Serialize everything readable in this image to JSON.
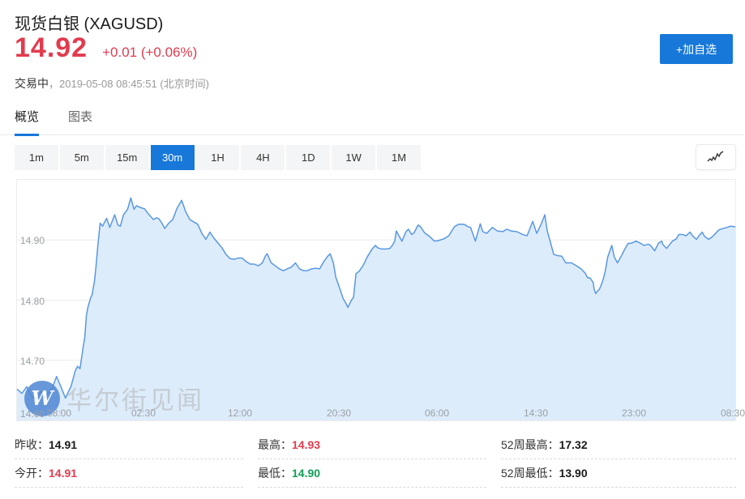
{
  "header": {
    "title": "现货白银 (XAGUSD)",
    "price": "14.92",
    "change": "+0.01 (+0.06%)",
    "status": "交易中",
    "status_sep": "，",
    "timestamp": "2019-05-08 08:45:51 (北京时间)",
    "add_button_label": "+加自选"
  },
  "tabs": [
    {
      "name": "overview",
      "label": "概览",
      "active": true
    },
    {
      "name": "chart",
      "label": "图表",
      "active": false
    }
  ],
  "ranges": [
    {
      "label": "1m",
      "active": false
    },
    {
      "label": "5m",
      "active": false
    },
    {
      "label": "15m",
      "active": false
    },
    {
      "label": "30m",
      "active": true
    },
    {
      "label": "1H",
      "active": false
    },
    {
      "label": "4H",
      "active": false
    },
    {
      "label": "1D",
      "active": false
    },
    {
      "label": "1W",
      "active": false
    },
    {
      "label": "1M",
      "active": false
    }
  ],
  "watermark": {
    "logo": "W",
    "text": "华尔街见闻"
  },
  "colors": {
    "accent_blue": "#1778d9",
    "up_red": "#e23b4e",
    "down_green": "#0f9d58",
    "line_blue": "#5897e3",
    "fill_blue": "#ddecfa"
  },
  "chart_data": {
    "type": "area",
    "title": "",
    "xlabel": "",
    "ylabel": "",
    "grid": true,
    "legend": "none",
    "ylim": [
      14.6,
      15.0
    ],
    "line_color": "#5897e3",
    "fill_color": "#ddecfa",
    "y_ticks": [
      {
        "label": "14.90",
        "price": 14.9,
        "grid": true
      },
      {
        "label": "14.80",
        "price": 14.8,
        "grid": true
      },
      {
        "label": "14.70",
        "price": 14.7,
        "grid": true
      },
      {
        "label": "14.60",
        "price": 14.6,
        "grid": false
      }
    ],
    "x_ticks": [
      {
        "label": "08:00",
        "x": 52
      },
      {
        "label": "02:30",
        "x": 156
      },
      {
        "label": "12:00",
        "x": 275
      },
      {
        "label": "20:30",
        "x": 397
      },
      {
        "label": "06:00",
        "x": 518
      },
      {
        "label": "14:30",
        "x": 640
      },
      {
        "label": "23:00",
        "x": 761
      },
      {
        "label": "08:30",
        "x": 883
      }
    ],
    "points": [
      [
        0,
        14.652
      ],
      [
        6,
        14.645
      ],
      [
        12,
        14.656
      ],
      [
        18,
        14.64
      ],
      [
        24,
        14.636
      ],
      [
        30,
        14.649
      ],
      [
        34,
        14.637
      ],
      [
        38,
        14.644
      ],
      [
        44,
        14.655
      ],
      [
        49,
        14.673
      ],
      [
        55,
        14.654
      ],
      [
        60,
        14.637
      ],
      [
        67,
        14.657
      ],
      [
        72,
        14.682
      ],
      [
        75,
        14.69
      ],
      [
        78,
        14.686
      ],
      [
        82,
        14.722
      ],
      [
        84,
        14.739
      ],
      [
        86,
        14.775
      ],
      [
        88,
        14.789
      ],
      [
        91,
        14.803
      ],
      [
        93,
        14.809
      ],
      [
        96,
        14.832
      ],
      [
        98,
        14.858
      ],
      [
        100,
        14.889
      ],
      [
        103,
        14.928
      ],
      [
        106,
        14.923
      ],
      [
        111,
        14.936
      ],
      [
        115,
        14.921
      ],
      [
        121,
        14.942
      ],
      [
        125,
        14.925
      ],
      [
        128,
        14.923
      ],
      [
        132,
        14.942
      ],
      [
        137,
        14.951
      ],
      [
        141,
        14.97
      ],
      [
        145,
        14.951
      ],
      [
        148,
        14.957
      ],
      [
        151,
        14.955
      ],
      [
        155,
        14.953
      ],
      [
        158,
        14.952
      ],
      [
        163,
        14.943
      ],
      [
        169,
        14.934
      ],
      [
        173,
        14.937
      ],
      [
        176,
        14.935
      ],
      [
        180,
        14.927
      ],
      [
        183,
        14.919
      ],
      [
        188,
        14.928
      ],
      [
        193,
        14.934
      ],
      [
        198,
        14.952
      ],
      [
        204,
        14.966
      ],
      [
        209,
        14.947
      ],
      [
        214,
        14.934
      ],
      [
        219,
        14.93
      ],
      [
        224,
        14.926
      ],
      [
        229,
        14.911
      ],
      [
        234,
        14.901
      ],
      [
        239,
        14.913
      ],
      [
        244,
        14.903
      ],
      [
        249,
        14.895
      ],
      [
        254,
        14.887
      ],
      [
        259,
        14.876
      ],
      [
        264,
        14.869
      ],
      [
        269,
        14.868
      ],
      [
        274,
        14.87
      ],
      [
        279,
        14.87
      ],
      [
        284,
        14.864
      ],
      [
        289,
        14.86
      ],
      [
        294,
        14.86
      ],
      [
        299,
        14.857
      ],
      [
        304,
        14.862
      ],
      [
        308,
        14.874
      ],
      [
        310,
        14.877
      ],
      [
        315,
        14.862
      ],
      [
        320,
        14.857
      ],
      [
        325,
        14.852
      ],
      [
        330,
        14.849
      ],
      [
        335,
        14.852
      ],
      [
        340,
        14.855
      ],
      [
        345,
        14.862
      ],
      [
        350,
        14.852
      ],
      [
        355,
        14.849
      ],
      [
        360,
        14.849
      ],
      [
        365,
        14.852
      ],
      [
        370,
        14.853
      ],
      [
        375,
        14.852
      ],
      [
        380,
        14.864
      ],
      [
        385,
        14.873
      ],
      [
        388,
        14.877
      ],
      [
        392,
        14.862
      ],
      [
        395,
        14.838
      ],
      [
        400,
        14.819
      ],
      [
        404,
        14.803
      ],
      [
        407,
        14.796
      ],
      [
        410,
        14.788
      ],
      [
        414,
        14.799
      ],
      [
        417,
        14.805
      ],
      [
        420,
        14.844
      ],
      [
        424,
        14.848
      ],
      [
        429,
        14.858
      ],
      [
        434,
        14.872
      ],
      [
        440,
        14.885
      ],
      [
        444,
        14.891
      ],
      [
        447,
        14.887
      ],
      [
        452,
        14.885
      ],
      [
        457,
        14.885
      ],
      [
        462,
        14.886
      ],
      [
        465,
        14.891
      ],
      [
        468,
        14.898
      ],
      [
        470,
        14.915
      ],
      [
        474,
        14.905
      ],
      [
        477,
        14.898
      ],
      [
        482,
        14.914
      ],
      [
        485,
        14.918
      ],
      [
        489,
        14.909
      ],
      [
        492,
        14.912
      ],
      [
        497,
        14.925
      ],
      [
        500,
        14.922
      ],
      [
        505,
        14.912
      ],
      [
        512,
        14.905
      ],
      [
        517,
        14.898
      ],
      [
        522,
        14.899
      ],
      [
        529,
        14.902
      ],
      [
        535,
        14.907
      ],
      [
        542,
        14.922
      ],
      [
        547,
        14.926
      ],
      [
        554,
        14.926
      ],
      [
        559,
        14.922
      ],
      [
        562,
        14.921
      ],
      [
        568,
        14.898
      ],
      [
        574,
        14.927
      ],
      [
        577,
        14.914
      ],
      [
        582,
        14.911
      ],
      [
        589,
        14.921
      ],
      [
        595,
        14.915
      ],
      [
        602,
        14.914
      ],
      [
        607,
        14.918
      ],
      [
        612,
        14.915
      ],
      [
        619,
        14.914
      ],
      [
        627,
        14.909
      ],
      [
        632,
        14.907
      ],
      [
        639,
        14.931
      ],
      [
        644,
        14.911
      ],
      [
        649,
        14.925
      ],
      [
        654,
        14.942
      ],
      [
        657,
        14.915
      ],
      [
        660,
        14.901
      ],
      [
        665,
        14.876
      ],
      [
        670,
        14.874
      ],
      [
        675,
        14.873
      ],
      [
        680,
        14.862
      ],
      [
        687,
        14.862
      ],
      [
        692,
        14.858
      ],
      [
        699,
        14.852
      ],
      [
        704,
        14.845
      ],
      [
        707,
        14.837
      ],
      [
        710,
        14.837
      ],
      [
        714,
        14.829
      ],
      [
        715,
        14.819
      ],
      [
        717,
        14.811
      ],
      [
        722,
        14.819
      ],
      [
        725,
        14.829
      ],
      [
        727,
        14.838
      ],
      [
        729,
        14.849
      ],
      [
        732,
        14.872
      ],
      [
        737,
        14.891
      ],
      [
        740,
        14.872
      ],
      [
        744,
        14.862
      ],
      [
        749,
        14.874
      ],
      [
        752,
        14.882
      ],
      [
        757,
        14.894
      ],
      [
        762,
        14.895
      ],
      [
        767,
        14.898
      ],
      [
        772,
        14.895
      ],
      [
        777,
        14.891
      ],
      [
        782,
        14.893
      ],
      [
        785,
        14.891
      ],
      [
        790,
        14.882
      ],
      [
        795,
        14.895
      ],
      [
        799,
        14.898
      ],
      [
        800,
        14.893
      ],
      [
        805,
        14.886
      ],
      [
        809,
        14.893
      ],
      [
        812,
        14.898
      ],
      [
        817,
        14.902
      ],
      [
        820,
        14.909
      ],
      [
        825,
        14.909
      ],
      [
        829,
        14.907
      ],
      [
        834,
        14.913
      ],
      [
        837,
        14.907
      ],
      [
        842,
        14.901
      ],
      [
        845,
        14.907
      ],
      [
        849,
        14.913
      ],
      [
        852,
        14.906
      ],
      [
        857,
        14.901
      ],
      [
        862,
        14.906
      ],
      [
        867,
        14.913
      ],
      [
        870,
        14.917
      ],
      [
        875,
        14.919
      ],
      [
        880,
        14.921
      ],
      [
        884,
        14.923
      ],
      [
        890,
        14.922
      ]
    ]
  },
  "stats": {
    "colon": "：",
    "columns": [
      [
        {
          "key": "prev-close",
          "label": "昨收",
          "value": "14.91",
          "color": "dark"
        },
        {
          "key": "open",
          "label": "今开",
          "value": "14.91",
          "color": "red"
        }
      ],
      [
        {
          "key": "high",
          "label": "最高",
          "value": "14.93",
          "color": "red"
        },
        {
          "key": "low",
          "label": "最低",
          "value": "14.90",
          "color": "green"
        }
      ],
      [
        {
          "key": "52w-high",
          "label": "52周最高",
          "value": "17.32",
          "color": "dark"
        },
        {
          "key": "52w-low",
          "label": "52周最低",
          "value": "13.90",
          "color": "dark"
        }
      ]
    ]
  }
}
